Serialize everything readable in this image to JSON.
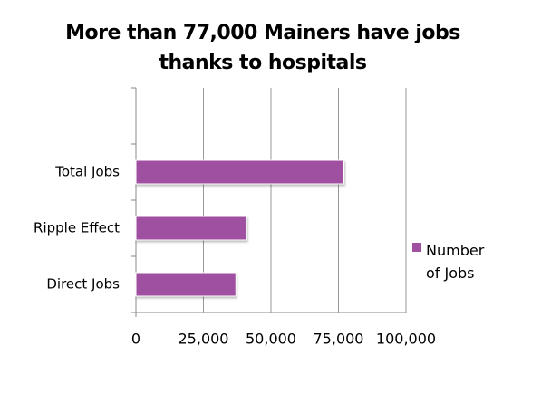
{
  "chart_data": {
    "type": "hbar",
    "title": "More than 77,000 Mainers have jobs thanks to hospitals",
    "categories": [
      "Direct Jobs",
      "Ripple Effect",
      "Total Jobs",
      null
    ],
    "series": [
      {
        "name": "Number of Jobs",
        "color": "#a050a0",
        "values": [
          37000,
          41000,
          77000,
          null
        ]
      }
    ],
    "xlim": [
      0,
      100000
    ],
    "xticks": [
      0,
      {
        "value": 25000,
        "label": "25,000"
      },
      {
        "value": 50000,
        "label": "50,000"
      },
      {
        "value": 75000,
        "label": "75,000"
      },
      {
        "value": 100000,
        "label": "100,000"
      }
    ],
    "grid": true,
    "legend": "right"
  }
}
